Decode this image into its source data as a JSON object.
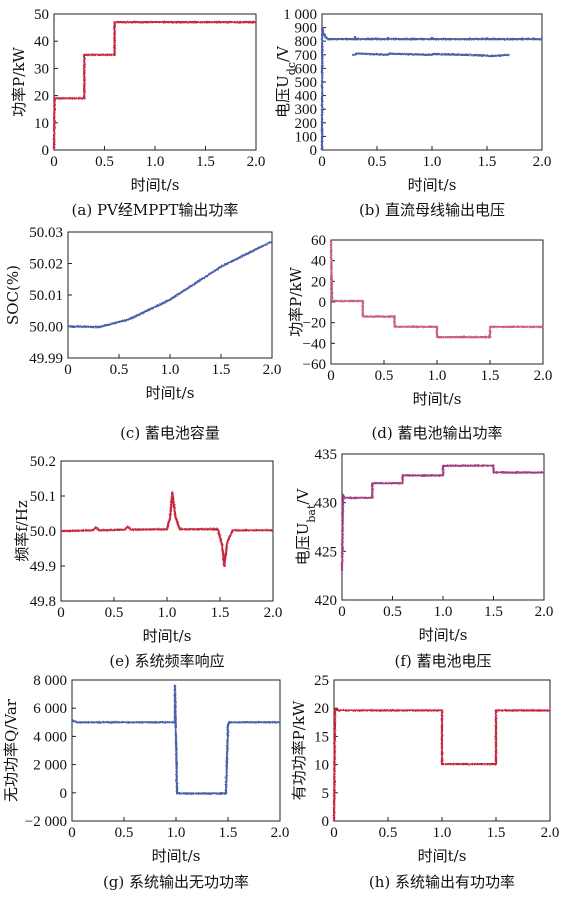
{
  "chart_data": [
    {
      "id": "a",
      "type": "line",
      "caption": "(a) PV经MPPT输出功率",
      "xlabel": "时间t/s",
      "ylabel": "功率P/kW",
      "xlim": [
        0,
        2.0
      ],
      "ylim": [
        0,
        50
      ],
      "xticks": [
        0,
        0.5,
        1.0,
        1.5,
        2.0
      ],
      "xtick_labels": [
        "0",
        "0.5",
        "1.0",
        "1.5",
        "2.0"
      ],
      "yticks": [
        0,
        10,
        20,
        30,
        40,
        50
      ],
      "ytick_labels": [
        "0",
        "10",
        "20",
        "30",
        "40",
        "50"
      ],
      "color": "#c8283e",
      "series": [
        {
          "x": [
            0,
            0.005,
            0.01,
            0.3,
            0.3,
            0.6,
            0.6,
            2.0
          ],
          "y": [
            0,
            18,
            19,
            19,
            35,
            35,
            47,
            47
          ]
        }
      ]
    },
    {
      "id": "b",
      "type": "line",
      "caption": "(b) 直流母线输出电压",
      "xlabel": "时间t/s",
      "ylabel": "电压U",
      "ylabel_sub": "dc",
      "ylabel_unit": "/V",
      "xlim": [
        0,
        2.0
      ],
      "ylim": [
        0,
        1000
      ],
      "xticks": [
        0,
        0.5,
        1.0,
        1.5,
        2.0
      ],
      "xtick_labels": [
        "0",
        "0.5",
        "1.0",
        "1.5",
        "2.0"
      ],
      "yticks": [
        0,
        100,
        200,
        300,
        400,
        500,
        600,
        700,
        800,
        900,
        1000
      ],
      "ytick_labels": [
        "0",
        "100",
        "200",
        "300",
        "400",
        "500",
        "600",
        "700",
        "800",
        "900",
        "1 000"
      ],
      "color": "#4a5fa8",
      "series": [
        {
          "x": [
            0,
            0.002,
            0.01,
            0.03,
            0.06,
            0.3,
            0.3,
            0.31,
            0.6,
            0.6,
            0.61,
            1.0,
            1.0,
            1.01,
            1.5,
            1.5,
            1.51,
            2.0
          ],
          "y": [
            0,
            900,
            870,
            830,
            815,
            815,
            830,
            815,
            815,
            825,
            815,
            815,
            825,
            815,
            815,
            822,
            815,
            815
          ]
        },
        {
          "x": [
            0.28,
            0.3,
            0.31,
            0.6,
            0.61,
            1.0,
            1.01,
            1.5,
            1.52,
            1.7
          ],
          "y": [
            700,
            700,
            710,
            700,
            708,
            700,
            706,
            695,
            690,
            700
          ]
        }
      ]
    },
    {
      "id": "c",
      "type": "line",
      "caption": "(c) 蓄电池容量",
      "xlabel": "时间t/s",
      "ylabel": "SOC(%)",
      "xlim": [
        0,
        2.0
      ],
      "ylim": [
        49.99,
        50.03
      ],
      "xticks": [
        0,
        0.5,
        1.0,
        1.5,
        2.0
      ],
      "xtick_labels": [
        "0",
        "0.5",
        "1.0",
        "1.5",
        "2.0"
      ],
      "yticks": [
        49.99,
        50.0,
        50.01,
        50.02,
        50.03
      ],
      "ytick_labels": [
        "49.99",
        "50.00",
        "50.01",
        "50.02",
        "50.03"
      ],
      "color": "#4a5fa8",
      "series": [
        {
          "x": [
            0,
            0.1,
            0.3,
            0.6,
            1.0,
            1.5,
            2.0
          ],
          "y": [
            50.0,
            50.0,
            49.9998,
            50.0023,
            50.0085,
            50.019,
            50.027
          ]
        }
      ]
    },
    {
      "id": "d",
      "type": "line",
      "caption": "(d) 蓄电池输出功率",
      "xlabel": "时间t/s",
      "ylabel": "功率P/kW",
      "xlim": [
        0,
        2.0
      ],
      "ylim": [
        -60,
        60
      ],
      "xticks": [
        0,
        0.5,
        1.0,
        1.5,
        2.0
      ],
      "xtick_labels": [
        "0",
        "0.5",
        "1.0",
        "1.5",
        "2.0"
      ],
      "yticks": [
        -60,
        -40,
        -20,
        0,
        20,
        40,
        60
      ],
      "ytick_labels": [
        "−60",
        "−40",
        "−20",
        "0",
        "20",
        "40",
        "60"
      ],
      "color": "#c85a8c",
      "series": [
        {
          "x": [
            0,
            0.01,
            0.3,
            0.3,
            0.6,
            0.6,
            1.0,
            1.0,
            1.5,
            1.5,
            2.0
          ],
          "y": [
            60,
            1,
            1,
            -14,
            -14,
            -24,
            -24,
            -34,
            -34,
            -24,
            -24
          ]
        }
      ]
    },
    {
      "id": "e",
      "type": "line",
      "caption": "(e) 系统频率响应",
      "xlabel": "时间t/s",
      "ylabel": "频率f/Hz",
      "xlim": [
        0,
        2.0
      ],
      "ylim": [
        49.8,
        50.2
      ],
      "xticks": [
        0,
        0.5,
        1.0,
        1.5,
        2.0
      ],
      "xtick_labels": [
        "0",
        "0.5",
        "1.0",
        "1.5",
        "2.0"
      ],
      "yticks": [
        49.8,
        49.9,
        50.0,
        50.1,
        50.2
      ],
      "ytick_labels": [
        "49.8",
        "49.9",
        "50.0",
        "50.1",
        "50.2"
      ],
      "color": "#c8283e",
      "series": [
        {
          "x": [
            0,
            0.05,
            0.3,
            0.33,
            0.36,
            0.6,
            0.63,
            0.66,
            1.0,
            1.03,
            1.05,
            1.08,
            1.12,
            1.48,
            1.52,
            1.54,
            1.57,
            1.62,
            2.0
          ],
          "y": [
            50.0,
            50.0,
            50.002,
            50.01,
            50.002,
            50.004,
            50.012,
            50.004,
            50.005,
            50.04,
            50.11,
            50.04,
            50.005,
            50.005,
            49.96,
            49.9,
            49.97,
            50.002,
            50.002
          ]
        }
      ]
    },
    {
      "id": "f",
      "type": "line",
      "caption": "(f) 蓄电池电压",
      "xlabel": "时间t/s",
      "ylabel": "电压U",
      "ylabel_sub": "bat",
      "ylabel_unit": "/V",
      "xlim": [
        0,
        2.0
      ],
      "ylim": [
        420,
        435
      ],
      "xticks": [
        0,
        0.5,
        1.0,
        1.5,
        2.0
      ],
      "xtick_labels": [
        "0",
        "0.5",
        "1.0",
        "1.5",
        "2.0"
      ],
      "yticks": [
        420,
        425,
        430,
        435
      ],
      "ytick_labels": [
        "420",
        "425",
        "430",
        "435"
      ],
      "color": "#a03c82",
      "series": [
        {
          "x": [
            0,
            0.01,
            0.02,
            0.3,
            0.3,
            0.6,
            0.6,
            1.0,
            1.0,
            1.5,
            1.5,
            2.0
          ],
          "y": [
            423,
            430.8,
            430.5,
            430.5,
            432,
            432,
            432.8,
            432.8,
            433.8,
            433.8,
            433.1,
            433.1
          ]
        }
      ]
    },
    {
      "id": "g",
      "type": "line",
      "caption": "(g) 系统输出无功功率",
      "xlabel": "时间t/s",
      "ylabel": "无功功率Q/Var",
      "xlim": [
        0,
        2.0
      ],
      "ylim": [
        -2000,
        8000
      ],
      "xticks": [
        0,
        0.5,
        1.0,
        1.5,
        2.0
      ],
      "xtick_labels": [
        "0",
        "0.5",
        "1.0",
        "1.5",
        "2.0"
      ],
      "yticks": [
        -2000,
        0,
        2000,
        4000,
        6000,
        8000
      ],
      "ytick_labels": [
        "−2 000",
        "0",
        "2 000",
        "4 000",
        "6 000",
        "8 000"
      ],
      "color": "#4a5fa8",
      "series": [
        {
          "x": [
            0,
            0.01,
            0.05,
            0.3,
            0.6,
            0.99,
            0.99,
            1.0,
            1.01,
            1.48,
            1.5,
            1.51,
            2.0
          ],
          "y": [
            5200,
            5100,
            5000,
            5000,
            5000,
            5000,
            7600,
            4000,
            -50,
            -50,
            4800,
            5000,
            5000
          ]
        }
      ]
    },
    {
      "id": "h",
      "type": "line",
      "caption": "(h) 系统输出有功功率",
      "xlabel": "时间t/s",
      "ylabel": "有功功率P/kW",
      "xlim": [
        0,
        2.0
      ],
      "ylim": [
        0,
        25
      ],
      "xticks": [
        0,
        0.5,
        1.0,
        1.5,
        2.0
      ],
      "xtick_labels": [
        "0",
        "0.5",
        "1.0",
        "1.5",
        "2.0"
      ],
      "yticks": [
        0,
        5,
        10,
        15,
        20,
        25
      ],
      "ytick_labels": [
        "0",
        "5",
        "10",
        "15",
        "20",
        "25"
      ],
      "color": "#c8283e",
      "series": [
        {
          "x": [
            0,
            0.01,
            0.05,
            0.3,
            0.6,
            1.0,
            1.0,
            1.5,
            1.5,
            2.0
          ],
          "y": [
            0,
            19.8,
            19.6,
            19.6,
            19.6,
            19.6,
            10.1,
            10.1,
            19.6,
            19.6
          ]
        }
      ]
    }
  ]
}
